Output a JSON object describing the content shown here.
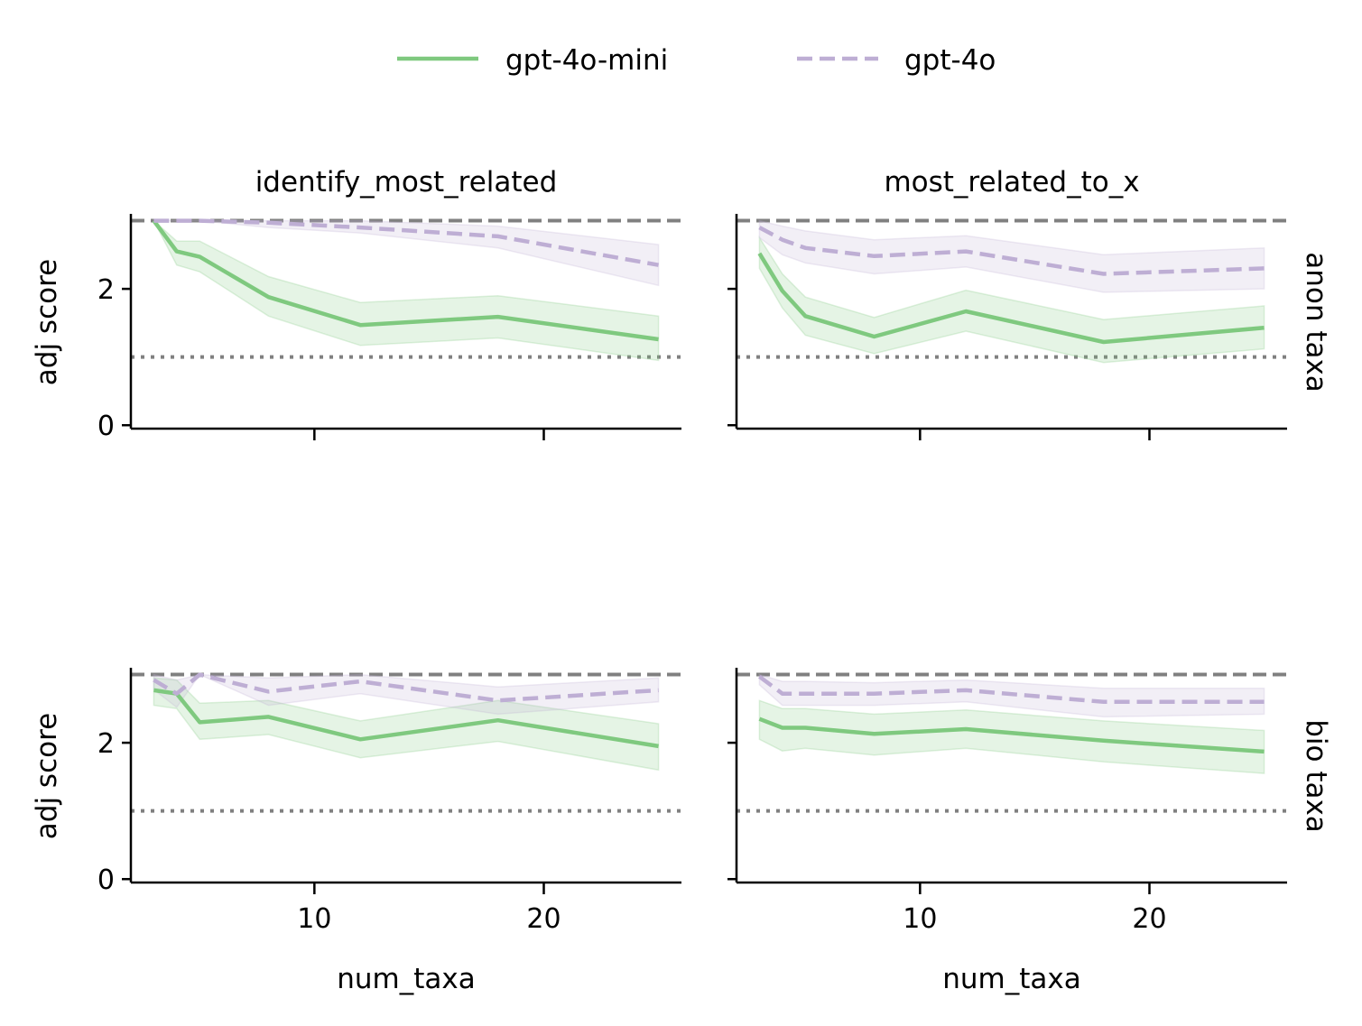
{
  "legend": {
    "position": "top-center",
    "entries": [
      {
        "label": "gpt-4o-mini",
        "color": "#7fc97f",
        "dash": "solid"
      },
      {
        "label": "gpt-4o",
        "color": "#beaed4",
        "dash": "dashed"
      }
    ]
  },
  "column_titles": [
    "identify_most_related",
    "most_related_to_x"
  ],
  "row_titles": [
    "anon taxa",
    "bio taxa"
  ],
  "reference_lines": {
    "upper": 3,
    "lower": 1,
    "color": "#808080"
  },
  "chart_data": {
    "type": "line",
    "layout": "facet-grid 2x2",
    "xlabel": "num_taxa",
    "ylabel": "adj score",
    "xlim": [
      2,
      26
    ],
    "ylim": [
      -0.05,
      3.1
    ],
    "xticks": [
      10,
      20
    ],
    "yticks": [
      0,
      2
    ],
    "grid": false,
    "panels": [
      {
        "row": "anon taxa",
        "col": "identify_most_related",
        "series": [
          {
            "name": "gpt-4o-mini",
            "x": [
              3,
              4,
              5,
              8,
              12,
              18,
              25
            ],
            "y": [
              3.0,
              2.55,
              2.47,
              1.88,
              1.47,
              1.59,
              1.26
            ],
            "lower": [
              3.0,
              2.35,
              2.25,
              1.6,
              1.17,
              1.28,
              0.95
            ],
            "upper": [
              3.0,
              2.7,
              2.7,
              2.18,
              1.8,
              1.9,
              1.6
            ]
          },
          {
            "name": "gpt-4o",
            "x": [
              3,
              4,
              5,
              8,
              12,
              18,
              25
            ],
            "y": [
              3.0,
              3.0,
              3.0,
              2.97,
              2.9,
              2.77,
              2.35
            ],
            "lower": [
              3.0,
              3.0,
              3.0,
              2.9,
              2.82,
              2.6,
              2.05
            ],
            "upper": [
              3.0,
              3.0,
              3.0,
              3.0,
              3.0,
              2.92,
              2.65
            ]
          }
        ]
      },
      {
        "row": "anon taxa",
        "col": "most_related_to_x",
        "series": [
          {
            "name": "gpt-4o-mini",
            "x": [
              3,
              4,
              5,
              8,
              12,
              18,
              25
            ],
            "y": [
              2.52,
              1.97,
              1.6,
              1.3,
              1.67,
              1.22,
              1.43
            ],
            "lower": [
              2.3,
              1.72,
              1.32,
              1.05,
              1.38,
              0.92,
              1.12
            ],
            "upper": [
              2.75,
              2.22,
              1.88,
              1.58,
              1.98,
              1.55,
              1.75
            ]
          },
          {
            "name": "gpt-4o",
            "x": [
              3,
              4,
              5,
              8,
              12,
              18,
              25
            ],
            "y": [
              2.9,
              2.72,
              2.6,
              2.48,
              2.55,
              2.22,
              2.3
            ],
            "lower": [
              2.75,
              2.5,
              2.38,
              2.22,
              2.32,
              1.95,
              2.0
            ],
            "upper": [
              3.0,
              2.92,
              2.85,
              2.72,
              2.78,
              2.5,
              2.6
            ]
          }
        ]
      },
      {
        "row": "bio taxa",
        "col": "identify_most_related",
        "series": [
          {
            "name": "gpt-4o-mini",
            "x": [
              3,
              4,
              5,
              8,
              12,
              18,
              25
            ],
            "y": [
              2.77,
              2.72,
              2.3,
              2.38,
              2.05,
              2.33,
              1.95
            ],
            "lower": [
              2.55,
              2.5,
              2.05,
              2.12,
              1.78,
              2.02,
              1.6
            ],
            "upper": [
              2.95,
              2.92,
              2.58,
              2.62,
              2.32,
              2.62,
              2.28
            ]
          },
          {
            "name": "gpt-4o",
            "x": [
              3,
              4,
              5,
              8,
              12,
              18,
              25
            ],
            "y": [
              2.92,
              2.72,
              3.0,
              2.75,
              2.9,
              2.62,
              2.77
            ],
            "lower": [
              2.78,
              2.52,
              3.0,
              2.55,
              2.72,
              2.42,
              2.6
            ],
            "upper": [
              3.0,
              2.92,
              3.0,
              2.95,
              3.0,
              2.82,
              2.95
            ]
          }
        ]
      },
      {
        "row": "bio taxa",
        "col": "most_related_to_x",
        "series": [
          {
            "name": "gpt-4o-mini",
            "x": [
              3,
              4,
              5,
              8,
              12,
              18,
              25
            ],
            "y": [
              2.35,
              2.22,
              2.22,
              2.13,
              2.2,
              2.03,
              1.87
            ],
            "lower": [
              2.05,
              1.88,
              1.92,
              1.82,
              1.92,
              1.72,
              1.55
            ],
            "upper": [
              2.62,
              2.5,
              2.5,
              2.42,
              2.48,
              2.32,
              2.18
            ]
          },
          {
            "name": "gpt-4o",
            "x": [
              3,
              4,
              5,
              8,
              12,
              18,
              25
            ],
            "y": [
              2.97,
              2.72,
              2.72,
              2.72,
              2.77,
              2.6,
              2.6
            ],
            "lower": [
              2.85,
              2.55,
              2.55,
              2.55,
              2.6,
              2.38,
              2.42
            ],
            "upper": [
              3.0,
              2.9,
              2.9,
              2.88,
              2.92,
              2.8,
              2.8
            ]
          }
        ]
      }
    ]
  }
}
